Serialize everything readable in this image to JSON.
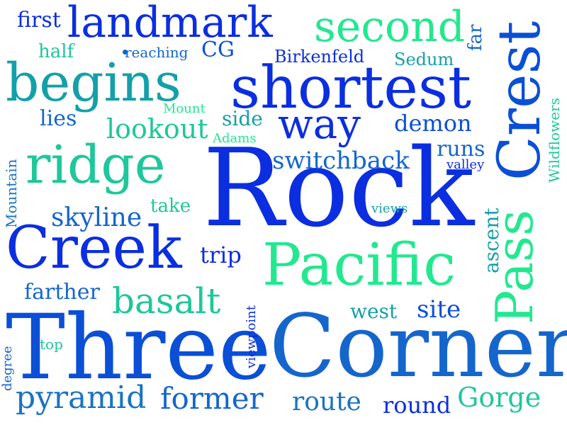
{
  "colors": {
    "background": "#ffffff",
    "deep_blue": "#0b2ee0",
    "royal_blue": "#0a4fd6",
    "medium_blue": "#1466cc",
    "steel_blue": "#1a73c2",
    "teal": "#14a0a8",
    "sea_green": "#1fc79a",
    "spring_green": "#22e890"
  },
  "words": {
    "rock": "Rock",
    "three": "Three",
    "corner": "Corner",
    "crest": "Crest",
    "pass": "Pass",
    "pacific": "Pacific",
    "shortest": "shortest",
    "creek": "Creek",
    "ridge": "ridge",
    "begins": "begins",
    "landmark": "landmark",
    "second": "second",
    "way": "way",
    "basalt": "basalt",
    "lookout": "lookout",
    "skyline": "skyline",
    "switchback": "switchback",
    "first": "first",
    "half": "half",
    "reaching": "reaching",
    "cg": "CG",
    "birkenfeld": "Birkenfeld",
    "sedum": "Sedum",
    "far": "far",
    "wildflowers": "Wildflowers",
    "mount": "Mount",
    "adams": "Adams",
    "side": "side",
    "lies": "lies",
    "demon": "demon",
    "runs": "runs",
    "valley": "valley",
    "mountain": "Mountain",
    "take": "take",
    "views": "views",
    "trip": "trip",
    "ascent": "ascent",
    "farther": "farther",
    "west": "west",
    "site": "site",
    "viewpoint": "viewpoint",
    "top": "top",
    "degree": "degree",
    "pyramid": "pyramid",
    "former": "former",
    "route": "route",
    "round": "round",
    "gorge": "Gorge"
  }
}
